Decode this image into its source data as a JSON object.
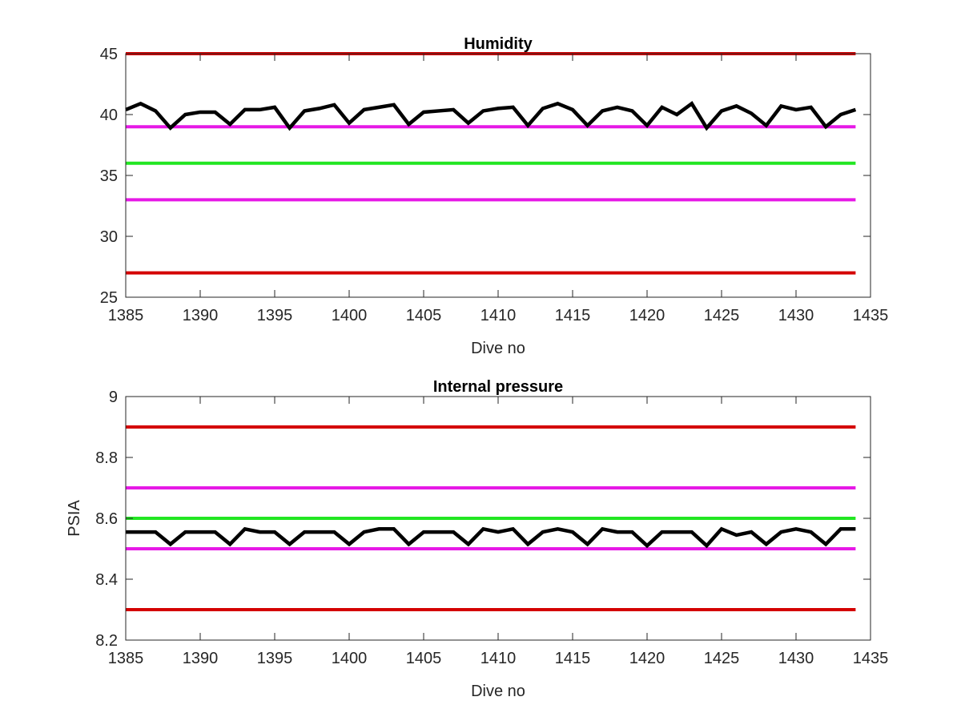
{
  "colors": {
    "data_line": "#000000",
    "outer_limit": "#d40000",
    "inner_limit": "#e619e6",
    "nominal": "#22e622",
    "axes": "#262626"
  },
  "chart_data": [
    {
      "type": "line",
      "title": "Humidity",
      "xlabel": "Dive no",
      "ylabel": "",
      "xlim": [
        1385,
        1435
      ],
      "ylim": [
        25,
        45
      ],
      "xticks": [
        1385,
        1390,
        1395,
        1400,
        1405,
        1410,
        1415,
        1420,
        1425,
        1430,
        1435
      ],
      "yticks": [
        25,
        30,
        35,
        40,
        45
      ],
      "xtick_labels": [
        "1385",
        "1390",
        "1395",
        "1400",
        "1405",
        "1410",
        "1415",
        "1420",
        "1425",
        "1430",
        "1435"
      ],
      "ytick_labels": [
        "25",
        "30",
        "35",
        "40",
        "45"
      ],
      "grid": false,
      "series": [
        {
          "role": "measurement",
          "color": "#000000",
          "x": [
            1385,
            1386,
            1387,
            1388,
            1389,
            1390,
            1391,
            1392,
            1393,
            1394,
            1395,
            1396,
            1397,
            1398,
            1399,
            1400,
            1401,
            1402,
            1403,
            1404,
            1405,
            1406,
            1407,
            1408,
            1409,
            1410,
            1411,
            1412,
            1413,
            1414,
            1415,
            1416,
            1417,
            1418,
            1419,
            1420,
            1421,
            1422,
            1423,
            1424,
            1425,
            1426,
            1427,
            1428,
            1429,
            1430,
            1431,
            1432,
            1433,
            1434
          ],
          "y": [
            40.4,
            40.9,
            40.3,
            38.9,
            40.0,
            40.2,
            40.2,
            39.2,
            40.4,
            40.4,
            40.6,
            38.9,
            40.3,
            40.5,
            40.8,
            39.3,
            40.4,
            40.6,
            40.8,
            39.2,
            40.2,
            40.3,
            40.4,
            39.3,
            40.3,
            40.5,
            40.6,
            39.1,
            40.5,
            40.9,
            40.4,
            39.1,
            40.3,
            40.6,
            40.3,
            39.1,
            40.6,
            40.0,
            40.9,
            38.9,
            40.3,
            40.7,
            40.1,
            39.1,
            40.7,
            40.4,
            40.6,
            39.0,
            40.0,
            40.4
          ]
        },
        {
          "role": "upper-outer-limit",
          "color": "#d40000",
          "x": [
            1385,
            1434
          ],
          "y": [
            45,
            45
          ]
        },
        {
          "role": "upper-inner-limit",
          "color": "#e619e6",
          "x": [
            1385,
            1434
          ],
          "y": [
            39,
            39
          ]
        },
        {
          "role": "nominal",
          "color": "#22e622",
          "x": [
            1385,
            1434
          ],
          "y": [
            36,
            36
          ]
        },
        {
          "role": "lower-inner-limit",
          "color": "#e619e6",
          "x": [
            1385,
            1434
          ],
          "y": [
            33,
            33
          ]
        },
        {
          "role": "lower-outer-limit",
          "color": "#d40000",
          "x": [
            1385,
            1434
          ],
          "y": [
            27,
            27
          ]
        }
      ]
    },
    {
      "type": "line",
      "title": "Internal pressure",
      "xlabel": "Dive no",
      "ylabel": "PSIA",
      "xlim": [
        1385,
        1435
      ],
      "ylim": [
        8.2,
        9.0
      ],
      "xticks": [
        1385,
        1390,
        1395,
        1400,
        1405,
        1410,
        1415,
        1420,
        1425,
        1430,
        1435
      ],
      "yticks": [
        8.2,
        8.4,
        8.6,
        8.8,
        9.0
      ],
      "xtick_labels": [
        "1385",
        "1390",
        "1395",
        "1400",
        "1405",
        "1410",
        "1415",
        "1420",
        "1425",
        "1430",
        "1435"
      ],
      "ytick_labels": [
        "8.2",
        "8.4",
        "8.6",
        "8.8",
        "9"
      ],
      "grid": false,
      "series": [
        {
          "role": "measurement",
          "color": "#000000",
          "x": [
            1385,
            1386,
            1387,
            1388,
            1389,
            1390,
            1391,
            1392,
            1393,
            1394,
            1395,
            1396,
            1397,
            1398,
            1399,
            1400,
            1401,
            1402,
            1403,
            1404,
            1405,
            1406,
            1407,
            1408,
            1409,
            1410,
            1411,
            1412,
            1413,
            1414,
            1415,
            1416,
            1417,
            1418,
            1419,
            1420,
            1421,
            1422,
            1423,
            1424,
            1425,
            1426,
            1427,
            1428,
            1429,
            1430,
            1431,
            1432,
            1433,
            1434
          ],
          "y": [
            8.555,
            8.555,
            8.555,
            8.515,
            8.555,
            8.555,
            8.555,
            8.515,
            8.565,
            8.555,
            8.555,
            8.515,
            8.555,
            8.555,
            8.555,
            8.515,
            8.555,
            8.565,
            8.565,
            8.515,
            8.555,
            8.555,
            8.555,
            8.515,
            8.565,
            8.555,
            8.565,
            8.515,
            8.555,
            8.565,
            8.555,
            8.515,
            8.565,
            8.555,
            8.555,
            8.51,
            8.555,
            8.555,
            8.555,
            8.51,
            8.565,
            8.545,
            8.555,
            8.515,
            8.555,
            8.565,
            8.555,
            8.515,
            8.565,
            8.565
          ]
        },
        {
          "role": "upper-outer-limit",
          "color": "#d40000",
          "x": [
            1385,
            1434
          ],
          "y": [
            8.9,
            8.9
          ]
        },
        {
          "role": "upper-inner-limit",
          "color": "#e619e6",
          "x": [
            1385,
            1434
          ],
          "y": [
            8.7,
            8.7
          ]
        },
        {
          "role": "nominal",
          "color": "#22e622",
          "x": [
            1385,
            1434
          ],
          "y": [
            8.6,
            8.6
          ]
        },
        {
          "role": "lower-inner-limit",
          "color": "#e619e6",
          "x": [
            1385,
            1434
          ],
          "y": [
            8.5,
            8.5
          ]
        },
        {
          "role": "lower-outer-limit",
          "color": "#d40000",
          "x": [
            1385,
            1434
          ],
          "y": [
            8.3,
            8.3
          ]
        }
      ]
    }
  ]
}
